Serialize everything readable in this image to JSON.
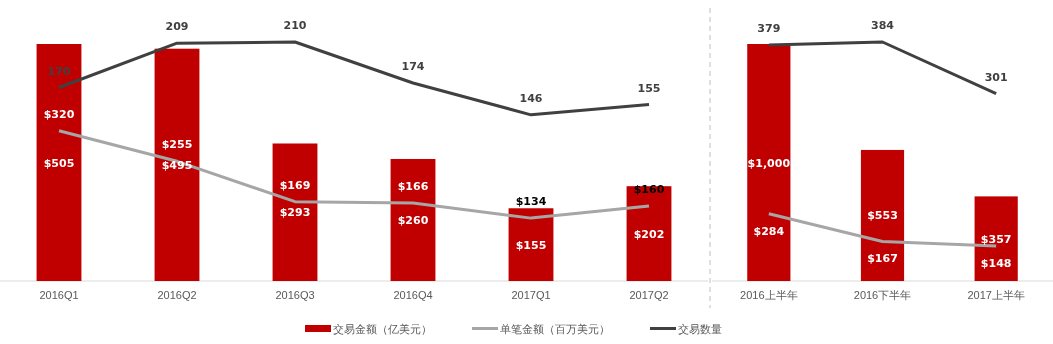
{
  "chart_data": [
    {
      "type": "bar",
      "categories": [
        "2016Q1",
        "2016Q2",
        "2016Q3",
        "2016Q4",
        "2017Q1",
        "2017Q2"
      ],
      "legend": "bottom",
      "series": [
        {
          "name": "交易金额（亿美元）",
          "color": "#c00000",
          "values": [
            505,
            495,
            293,
            260,
            155,
            202
          ],
          "value_labels": [
            "$505",
            "$495",
            "$293",
            "$260",
            "$155",
            "$202"
          ]
        },
        {
          "name": "单笔金额（百万美元）",
          "type": "line",
          "color": "#a6a6a6",
          "values": [
            320,
            255,
            169,
            166,
            134,
            160
          ],
          "value_labels": [
            "$320",
            "$255",
            "$169",
            "$166",
            "$134",
            "$160"
          ]
        },
        {
          "name": "交易数量",
          "type": "line",
          "axis": "y2",
          "color": "#404040",
          "values": [
            170,
            209,
            210,
            174,
            146,
            155
          ],
          "value_labels": [
            "170",
            "209",
            "210",
            "174",
            "146",
            "155"
          ]
        }
      ]
    },
    {
      "type": "bar",
      "categories": [
        "2016上半年",
        "2016下半年",
        "2017上半年"
      ],
      "series": [
        {
          "color": "#c00000",
          "values": [
            1000,
            553,
            357
          ],
          "value_labels": [
            "$1,000",
            "$553",
            "$357"
          ]
        },
        {
          "type": "line",
          "color": "#a6a6a6",
          "values": [
            284,
            167,
            148
          ],
          "value_labels": [
            "$284",
            "$167",
            "$148"
          ]
        },
        {
          "type": "line",
          "axis": "y2",
          "color": "#404040",
          "values": [
            379,
            384,
            301
          ],
          "value_labels": [
            "379",
            "384",
            "301"
          ]
        }
      ]
    }
  ]
}
